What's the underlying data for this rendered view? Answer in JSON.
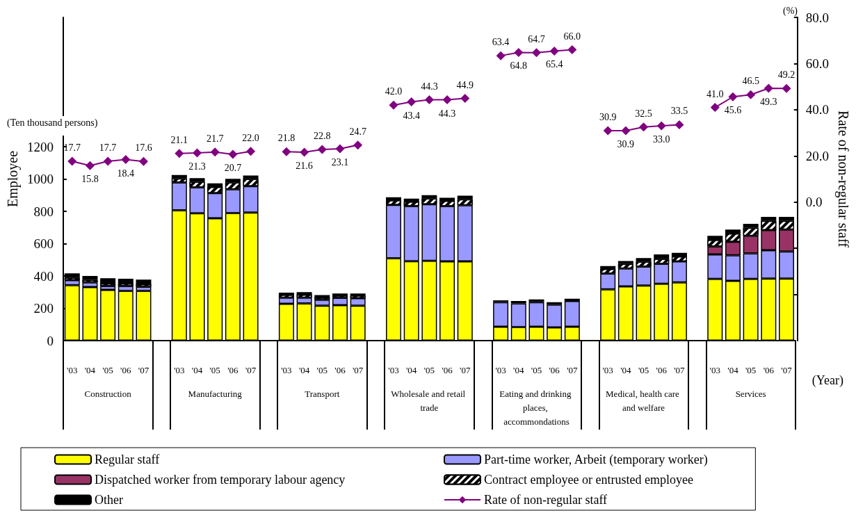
{
  "chart_data": {
    "type": "bar",
    "stacked": true,
    "ylabel": "Employee",
    "y2label": "Rate of non-regular staff",
    "xlabel": "(Year)",
    "annotations": [
      "(Ten thousand persons)",
      "(%)",
      "Construction",
      "Manufacturing",
      "Transport",
      "Wholesale and retail trade",
      "Eating and drinking places, accommondations",
      "Medical, health care and welfare",
      "Services"
    ],
    "categories": [
      "'03",
      "'04",
      "'05",
      "'06",
      "'07",
      null,
      "'03",
      "'04",
      "'05",
      "'06",
      "'07",
      null,
      "'03",
      "'04",
      "'05",
      "'06",
      "'07",
      null,
      "'03",
      "'04",
      "'05",
      "'06",
      "'07",
      null,
      "'03",
      "'04",
      "'05",
      "'06",
      "'07",
      null,
      "'03",
      "'04",
      "'05",
      "'06",
      "'07",
      null,
      "'03",
      "'04",
      "'05",
      "'06",
      "'07"
    ],
    "ylim": [
      0,
      2000
    ],
    "yticks": [
      0,
      200,
      400,
      600,
      800,
      1000,
      1200
    ],
    "y2lim": [
      -60,
      80
    ],
    "y2ticks": [
      {
        "value": -40,
        "label": null
      },
      {
        "value": -20,
        "label": null
      },
      {
        "value": 0,
        "label": "0.0"
      },
      {
        "value": 20,
        "label": "20.0"
      },
      {
        "value": 40,
        "label": "40.0"
      },
      {
        "value": 60,
        "label": "60.0"
      },
      {
        "value": 80,
        "label": "80.0"
      }
    ],
    "grid": false,
    "legend": "bottom",
    "series": [
      {
        "name": "Regular staff",
        "color": "#ffff00",
        "values": [
          343,
          331,
          314,
          308,
          308,
          null,
          806,
          788,
          757,
          789,
          793,
          null,
          228,
          230,
          216,
          219,
          216,
          null,
          510,
          491,
          494,
          490,
          490,
          null,
          86,
          84,
          86,
          82,
          86,
          null,
          317,
          336,
          341,
          352,
          360,
          null,
          382,
          370,
          382,
          384,
          384
        ]
      },
      {
        "name": "Part-time worker, Arbeit (temporary worker)",
        "color": "#9999ff",
        "values": [
          31,
          29,
          24,
          30,
          25,
          null,
          172,
          160,
          156,
          148,
          163,
          null,
          38,
          36,
          37,
          45,
          46,
          null,
          330,
          341,
          350,
          342,
          348,
          null,
          152,
          146,
          152,
          141,
          159,
          null,
          98,
          110,
          117,
          123,
          130,
          null,
          151,
          158,
          158,
          175,
          168
        ]
      },
      {
        "name": "Dispatched worker from temporary labour agency",
        "color": "#993366",
        "values": [
          null,
          null,
          null,
          null,
          null,
          null,
          null,
          null,
          null,
          null,
          null,
          null,
          null,
          null,
          null,
          null,
          null,
          null,
          null,
          null,
          null,
          null,
          null,
          null,
          null,
          null,
          null,
          null,
          null,
          null,
          null,
          null,
          null,
          null,
          null,
          null,
          50,
          84,
          108,
          125,
          135
        ]
      },
      {
        "name": "Contract employee or entrusted employee",
        "color": "#000000",
        "values": [
          15,
          15,
          15,
          15,
          15,
          null,
          25,
          35,
          38,
          42,
          44,
          null,
          17,
          18,
          14,
          14,
          16,
          null,
          28,
          27,
          36,
          32,
          36,
          null,
          null,
          null,
          null,
          null,
          null,
          null,
          28,
          28,
          30,
          30,
          30,
          null,
          40,
          50,
          50,
          57,
          54
        ]
      },
      {
        "name": "Other",
        "color": "#000000",
        "values": [
          27,
          25,
          33,
          30,
          29,
          null,
          22,
          22,
          22,
          22,
          22,
          null,
          14,
          16,
          15,
          13,
          13,
          null,
          19,
          19,
          20,
          20,
          23,
          null,
          11,
          15,
          17,
          15,
          14,
          null,
          18,
          18,
          23,
          28,
          23,
          null,
          25,
          25,
          25,
          25,
          25
        ]
      },
      {
        "name": "Rate of non-regular staff",
        "type": "line",
        "axis": "y2",
        "color": "#800080",
        "marker": "diamond",
        "values": [
          17.7,
          15.8,
          17.7,
          18.4,
          17.6,
          null,
          21.1,
          21.3,
          21.7,
          20.7,
          22.0,
          null,
          21.8,
          21.6,
          22.8,
          23.1,
          24.7,
          null,
          42.0,
          43.4,
          44.3,
          44.3,
          44.9,
          null,
          63.4,
          64.8,
          64.7,
          65.4,
          66.0,
          null,
          30.9,
          30.9,
          32.5,
          33.0,
          33.5,
          null,
          41.0,
          45.6,
          46.5,
          49.3,
          49.2
        ],
        "value_labels": [
          "17.7",
          "15.8",
          "17.7",
          "18.4",
          "17.6",
          null,
          "21.1",
          "21.3",
          "21.7",
          "20.7",
          "22.0",
          null,
          "21.8",
          "21.6",
          "22.8",
          "23.1",
          "24.7",
          null,
          "42.0",
          "43.4",
          "44.3",
          "44.3",
          "44.9",
          null,
          "63.4",
          "64.8",
          "64.7",
          "65.4",
          "66.0",
          null,
          "30.9",
          "30.9",
          "32.5",
          "33.0",
          "33.5",
          null,
          "41.0",
          "45.6",
          "46.5",
          "49.3",
          "49.2"
        ]
      }
    ]
  }
}
